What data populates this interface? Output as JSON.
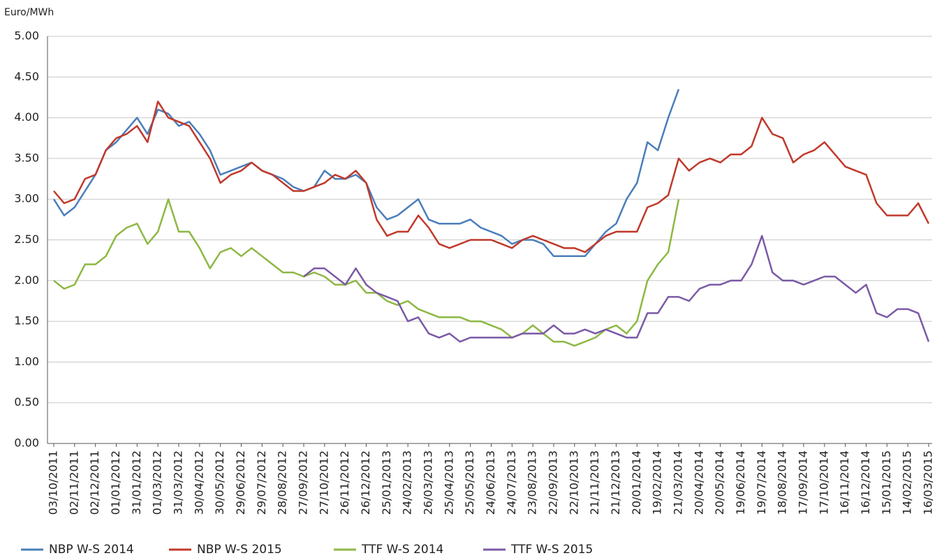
{
  "chart_data": {
    "type": "line",
    "y_label": "Euro/MWh",
    "categories": [
      "03/10/2011",
      null,
      "02/11/2011",
      null,
      "02/12/2011",
      null,
      "01/01/2012",
      null,
      "31/01/2012",
      null,
      "01/03/2012",
      null,
      "31/03/2012",
      null,
      "30/04/2012",
      null,
      "30/05/2012",
      null,
      "29/06/2012",
      null,
      "29/07/2012",
      null,
      "28/08/2012",
      null,
      "27/09/2012",
      null,
      "27/10/2012",
      null,
      "26/11/2012",
      null,
      "26/12/2012",
      null,
      "25/01/2013",
      null,
      "24/02/2013",
      null,
      "26/03/2013",
      null,
      "25/04/2013",
      null,
      "25/05/2013",
      null,
      "24/06/2013",
      null,
      "24/07/2013",
      null,
      "23/08/2013",
      null,
      "22/09/2013",
      null,
      "22/10/2013",
      null,
      "21/11/2013",
      null,
      "21/12/2013",
      null,
      "20/01/2014",
      null,
      "19/02/2014",
      null,
      "21/03/2014",
      null,
      "20/04/2014",
      null,
      "20/05/2014",
      null,
      "19/06/2014",
      null,
      "19/07/2014",
      null,
      "18/08/2014",
      null,
      "17/09/2014",
      null,
      "17/10/2014",
      null,
      "16/11/2014",
      null,
      "16/12/2014",
      null,
      "15/01/2015",
      null,
      "14/02/2015",
      null,
      "16/03/2015"
    ],
    "series": [
      {
        "name": "NBP W-S 2014",
        "color": "#4a7ebb",
        "values": [
          3.0,
          2.8,
          2.9,
          3.1,
          3.3,
          3.6,
          3.7,
          3.85,
          4.0,
          3.8,
          4.1,
          4.05,
          3.9,
          3.95,
          3.8,
          3.6,
          3.3,
          3.35,
          3.4,
          3.45,
          3.35,
          3.3,
          3.25,
          3.15,
          3.1,
          3.15,
          3.35,
          3.25,
          3.25,
          3.3,
          3.2,
          2.9,
          2.75,
          2.8,
          2.9,
          3.0,
          2.75,
          2.7,
          2.7,
          2.7,
          2.75,
          2.65,
          2.6,
          2.55,
          2.45,
          2.5,
          2.5,
          2.45,
          2.3,
          2.3,
          2.3,
          2.3,
          2.45,
          2.6,
          2.7,
          3.0,
          3.2,
          3.7,
          3.6,
          4.0,
          4.35,
          null,
          null,
          null,
          null,
          null,
          null,
          null,
          null,
          null,
          null,
          null,
          null,
          null,
          null,
          null,
          null,
          null,
          null,
          null,
          null,
          null,
          null,
          null,
          null
        ]
      },
      {
        "name": "NBP W-S 2015",
        "color": "#c0392b",
        "values": [
          3.1,
          2.95,
          3.0,
          3.25,
          3.3,
          3.6,
          3.75,
          3.8,
          3.9,
          3.7,
          4.2,
          4.0,
          3.95,
          3.9,
          3.7,
          3.5,
          3.2,
          3.3,
          3.35,
          3.45,
          3.35,
          3.3,
          3.2,
          3.1,
          3.1,
          3.15,
          3.2,
          3.3,
          3.25,
          3.35,
          3.2,
          2.75,
          2.55,
          2.6,
          2.6,
          2.8,
          2.65,
          2.45,
          2.4,
          2.45,
          2.5,
          2.5,
          2.5,
          2.45,
          2.4,
          2.5,
          2.55,
          2.5,
          2.45,
          2.4,
          2.4,
          2.35,
          2.45,
          2.55,
          2.6,
          2.6,
          2.6,
          2.9,
          2.95,
          3.05,
          3.5,
          3.35,
          3.45,
          3.5,
          3.45,
          3.55,
          3.55,
          3.65,
          4.0,
          3.8,
          3.75,
          3.45,
          3.55,
          3.6,
          3.7,
          3.55,
          3.4,
          3.35,
          3.3,
          2.95,
          2.8,
          2.8,
          2.8,
          2.95,
          2.7
        ]
      },
      {
        "name": "TTF W-S 2014",
        "color": "#8db843",
        "values": [
          2.0,
          1.9,
          1.95,
          2.2,
          2.2,
          2.3,
          2.55,
          2.65,
          2.7,
          2.45,
          2.6,
          3.0,
          2.6,
          2.6,
          2.4,
          2.15,
          2.35,
          2.4,
          2.3,
          2.4,
          2.3,
          2.2,
          2.1,
          2.1,
          2.05,
          2.1,
          2.05,
          1.95,
          1.95,
          2.0,
          1.85,
          1.85,
          1.75,
          1.7,
          1.75,
          1.65,
          1.6,
          1.55,
          1.55,
          1.55,
          1.5,
          1.5,
          1.45,
          1.4,
          1.3,
          1.35,
          1.45,
          1.35,
          1.25,
          1.25,
          1.2,
          1.25,
          1.3,
          1.4,
          1.45,
          1.35,
          1.5,
          2.0,
          2.2,
          2.35,
          3.0,
          null,
          null,
          null,
          null,
          null,
          null,
          null,
          null,
          null,
          null,
          null,
          null,
          null,
          null,
          null,
          null,
          null,
          null,
          null,
          null,
          null,
          null,
          null,
          null
        ]
      },
      {
        "name": "TTF W-S 2015",
        "color": "#7b5aa6",
        "values": [
          null,
          null,
          null,
          null,
          null,
          null,
          null,
          null,
          null,
          null,
          null,
          null,
          null,
          null,
          null,
          null,
          null,
          null,
          null,
          null,
          null,
          null,
          null,
          null,
          2.05,
          2.15,
          2.15,
          2.05,
          1.95,
          2.15,
          1.95,
          1.85,
          1.8,
          1.75,
          1.5,
          1.55,
          1.35,
          1.3,
          1.35,
          1.25,
          1.3,
          1.3,
          1.3,
          1.3,
          1.3,
          1.35,
          1.35,
          1.35,
          1.45,
          1.35,
          1.35,
          1.4,
          1.35,
          1.4,
          1.35,
          1.3,
          1.3,
          1.6,
          1.6,
          1.8,
          1.8,
          1.75,
          1.9,
          1.95,
          1.95,
          2.0,
          2.0,
          2.2,
          2.55,
          2.1,
          2.0,
          2.0,
          1.95,
          2.0,
          2.05,
          2.05,
          1.95,
          1.85,
          1.95,
          1.6,
          1.55,
          1.65,
          1.65,
          1.6,
          1.25
        ]
      }
    ],
    "ylim": [
      0,
      5
    ],
    "yticks": [
      {
        "value": 0,
        "label": "0.00"
      },
      {
        "value": 0.5,
        "label": "0.50"
      },
      {
        "value": 1,
        "label": "1.00"
      },
      {
        "value": 1.5,
        "label": "1.50"
      },
      {
        "value": 2,
        "label": "2.00"
      },
      {
        "value": 2.5,
        "label": "2.50"
      },
      {
        "value": 3,
        "label": "3.00"
      },
      {
        "value": 3.5,
        "label": "3.50"
      },
      {
        "value": 4,
        "label": "4.00"
      },
      {
        "value": 4.5,
        "label": "4.50"
      },
      {
        "value": 5,
        "label": "5.00"
      }
    ],
    "grid": true,
    "legend": "bottom"
  }
}
